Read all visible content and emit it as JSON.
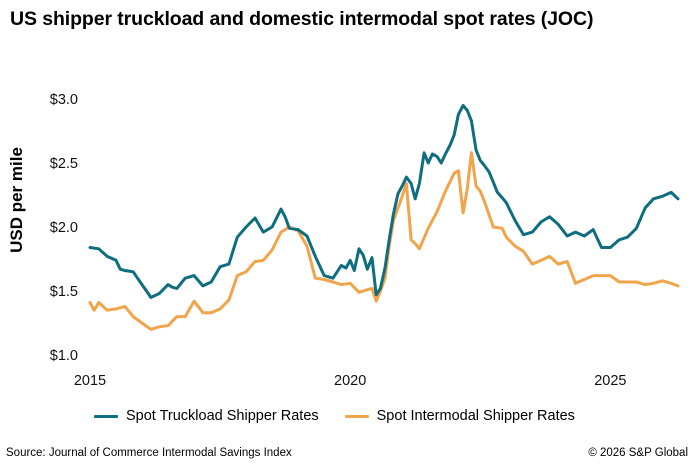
{
  "chart_data": {
    "type": "line",
    "title": "US shipper truckload and domestic intermodal spot rates (JOC)",
    "ylabel": "USD per mile",
    "xlabel": "",
    "ylim": [
      1.0,
      3.0
    ],
    "xlim": [
      2015.0,
      2026.3
    ],
    "yticks": [
      1.0,
      1.5,
      2.0,
      2.5,
      3.0
    ],
    "ytick_labels": [
      "$1.0",
      "$1.5",
      "$2.0",
      "$2.5",
      "$3.0"
    ],
    "xticks": [
      2015,
      2020,
      2025
    ],
    "xtick_labels": [
      "2015",
      "2020",
      "2025"
    ],
    "grid": false,
    "legend_position": "bottom",
    "series": [
      {
        "name": "Spot Truckload Shipper Rates",
        "color": "#0e6e80",
        "x": [
          2015.0,
          2015.17,
          2015.33,
          2015.5,
          2015.58,
          2015.67,
          2015.83,
          2016.0,
          2016.17,
          2016.33,
          2016.5,
          2016.58,
          2016.67,
          2016.83,
          2017.0,
          2017.17,
          2017.33,
          2017.5,
          2017.67,
          2017.83,
          2018.0,
          2018.17,
          2018.33,
          2018.5,
          2018.67,
          2018.75,
          2018.83,
          2019.0,
          2019.17,
          2019.33,
          2019.5,
          2019.67,
          2019.83,
          2019.92,
          2020.0,
          2020.08,
          2020.17,
          2020.25,
          2020.33,
          2020.42,
          2020.5,
          2020.58,
          2020.67,
          2020.75,
          2020.83,
          2020.92,
          2021.0,
          2021.08,
          2021.17,
          2021.25,
          2021.33,
          2021.42,
          2021.5,
          2021.58,
          2021.67,
          2021.75,
          2021.83,
          2021.92,
          2022.0,
          2022.08,
          2022.17,
          2022.25,
          2022.33,
          2022.42,
          2022.5,
          2022.58,
          2022.67,
          2022.75,
          2022.83,
          2022.92,
          2023.0,
          2023.17,
          2023.33,
          2023.5,
          2023.67,
          2023.83,
          2024.0,
          2024.17,
          2024.33,
          2024.5,
          2024.67,
          2024.83,
          2025.0,
          2025.17,
          2025.33,
          2025.5,
          2025.67,
          2025.83,
          2026.0,
          2026.17,
          2026.3
        ],
        "values": [
          1.84,
          1.83,
          1.77,
          1.74,
          1.67,
          1.66,
          1.65,
          1.55,
          1.45,
          1.48,
          1.55,
          1.53,
          1.52,
          1.6,
          1.62,
          1.54,
          1.57,
          1.69,
          1.71,
          1.92,
          2.0,
          2.07,
          1.96,
          2.0,
          2.14,
          2.08,
          1.99,
          1.98,
          1.93,
          1.77,
          1.62,
          1.6,
          1.7,
          1.68,
          1.74,
          1.66,
          1.83,
          1.78,
          1.67,
          1.76,
          1.47,
          1.52,
          1.68,
          1.9,
          2.1,
          2.26,
          2.32,
          2.39,
          2.34,
          2.22,
          2.34,
          2.58,
          2.5,
          2.57,
          2.55,
          2.5,
          2.57,
          2.64,
          2.72,
          2.88,
          2.95,
          2.91,
          2.83,
          2.6,
          2.52,
          2.48,
          2.43,
          2.35,
          2.27,
          2.23,
          2.19,
          2.05,
          1.94,
          1.96,
          2.04,
          2.08,
          2.02,
          1.93,
          1.96,
          1.93,
          1.98,
          1.84,
          1.84,
          1.9,
          1.92,
          1.99,
          2.15,
          2.22,
          2.24,
          2.27,
          2.22
        ],
        "x_trimmed_note": ""
      },
      {
        "name": "Spot Intermodal Shipper Rates",
        "color": "#f2a44b",
        "x": [
          2015.0,
          2015.08,
          2015.17,
          2015.33,
          2015.5,
          2015.67,
          2015.83,
          2016.0,
          2016.17,
          2016.33,
          2016.5,
          2016.67,
          2016.83,
          2017.0,
          2017.08,
          2017.17,
          2017.33,
          2017.5,
          2017.67,
          2017.83,
          2018.0,
          2018.17,
          2018.33,
          2018.5,
          2018.67,
          2018.83,
          2019.0,
          2019.17,
          2019.33,
          2019.5,
          2019.67,
          2019.83,
          2020.0,
          2020.17,
          2020.33,
          2020.42,
          2020.5,
          2020.58,
          2020.67,
          2020.75,
          2020.83,
          2021.0,
          2021.08,
          2021.17,
          2021.25,
          2021.33,
          2021.5,
          2021.67,
          2021.83,
          2022.0,
          2022.08,
          2022.17,
          2022.25,
          2022.33,
          2022.42,
          2022.5,
          2022.58,
          2022.75,
          2022.92,
          2023.0,
          2023.17,
          2023.33,
          2023.5,
          2023.67,
          2023.83,
          2024.0,
          2024.17,
          2024.33,
          2024.5,
          2024.67,
          2024.83,
          2025.0,
          2025.17,
          2025.33,
          2025.5,
          2025.67,
          2025.83,
          2026.0,
          2026.17,
          2026.3
        ],
        "values": [
          1.41,
          1.35,
          1.41,
          1.35,
          1.36,
          1.38,
          1.3,
          1.25,
          1.2,
          1.22,
          1.23,
          1.3,
          1.3,
          1.42,
          1.38,
          1.33,
          1.33,
          1.36,
          1.43,
          1.62,
          1.65,
          1.73,
          1.74,
          1.82,
          1.96,
          2.0,
          1.97,
          1.85,
          1.6,
          1.59,
          1.57,
          1.55,
          1.56,
          1.49,
          1.51,
          1.52,
          1.42,
          1.5,
          1.6,
          1.85,
          2.05,
          2.24,
          2.34,
          1.9,
          1.87,
          1.83,
          1.99,
          2.12,
          2.28,
          2.42,
          2.44,
          2.11,
          2.3,
          2.58,
          2.32,
          2.28,
          2.2,
          2.0,
          1.99,
          1.92,
          1.85,
          1.81,
          1.71,
          1.74,
          1.77,
          1.71,
          1.73,
          1.56,
          1.59,
          1.62,
          1.62,
          1.62,
          1.57,
          1.57,
          1.57,
          1.55,
          1.56,
          1.58,
          1.56,
          1.54
        ],
        "x_trimmed_note": ""
      }
    ]
  },
  "footer": {
    "source": "Source: Journal of Commerce Intermodal Savings Index",
    "copyright": "© 2026 S&P Global"
  }
}
